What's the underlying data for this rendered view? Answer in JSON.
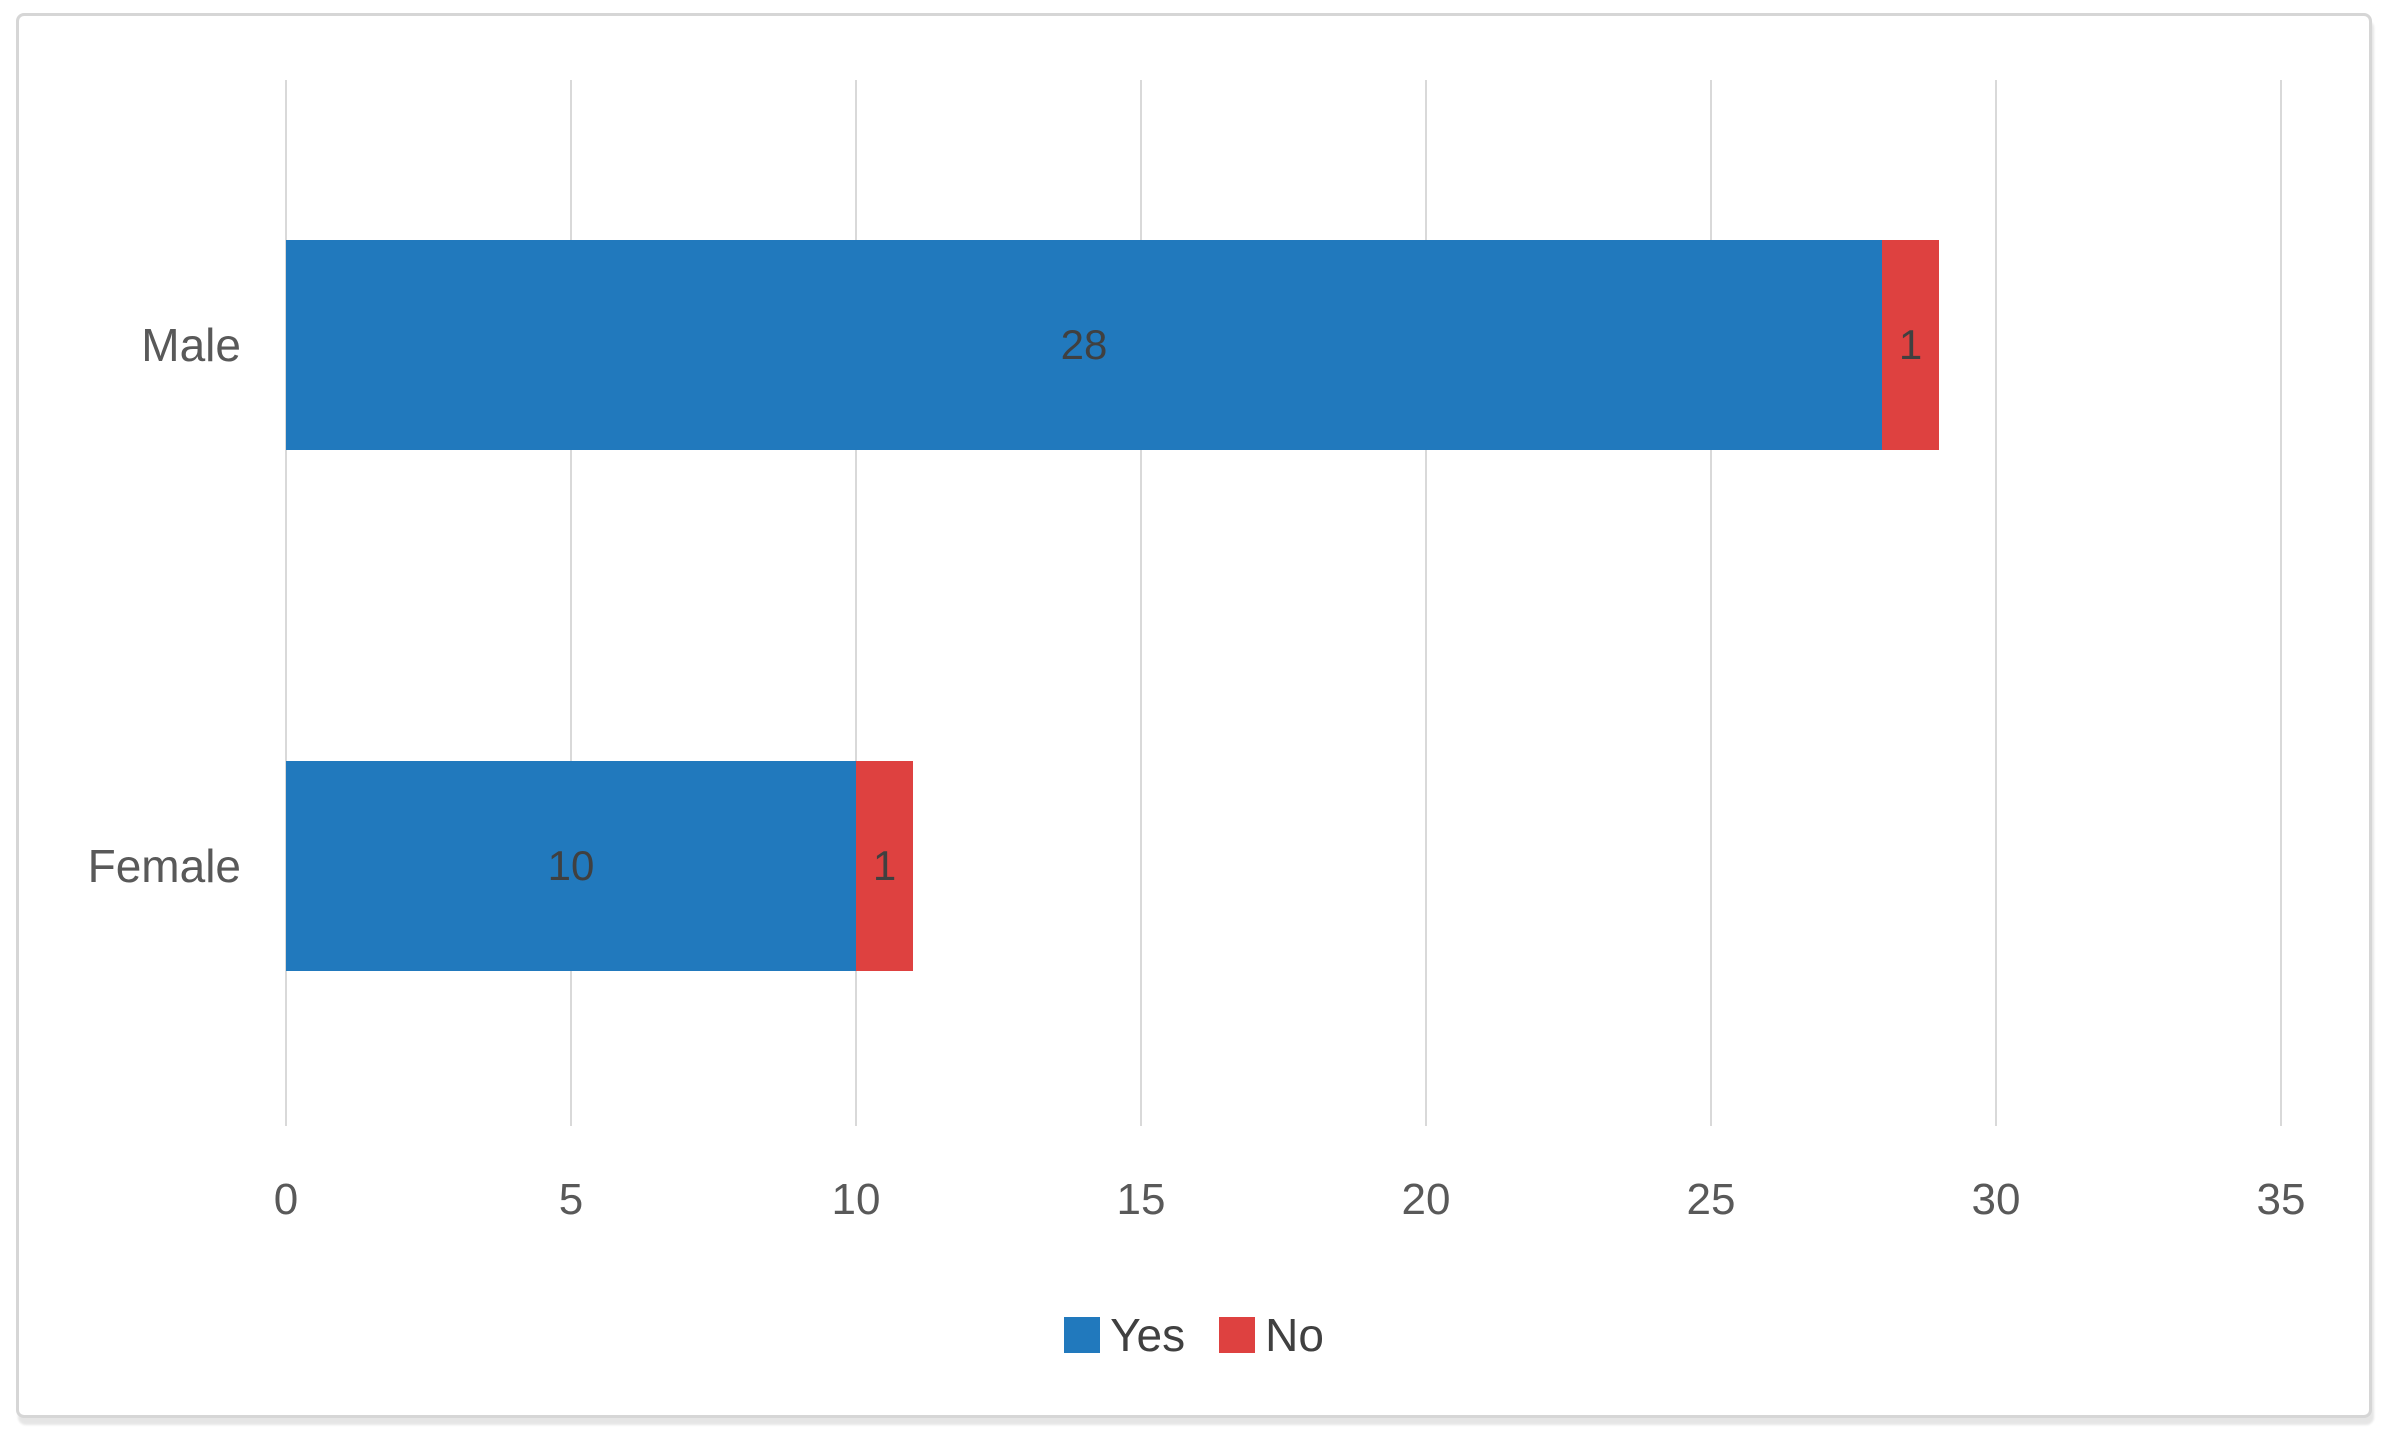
{
  "chart_data": {
    "type": "bar",
    "orientation": "horizontal",
    "stacked": true,
    "title": "",
    "xlabel": "",
    "ylabel": "",
    "categories": [
      "Male",
      "Female"
    ],
    "series": [
      {
        "name": "Yes",
        "color": "#2179BD",
        "values": [
          28,
          10
        ]
      },
      {
        "name": "No",
        "color": "#DE4140",
        "values": [
          1,
          1
        ]
      }
    ],
    "data_labels": true,
    "xlim": [
      0,
      35
    ],
    "xticks": [
      0,
      5,
      10,
      15,
      20,
      25,
      30,
      35
    ],
    "grid": "vertical-only",
    "gridline_color": "#D9D9D9",
    "axis_text_color": "#595959",
    "data_label_color": "#404040",
    "legend_position": "bottom-center",
    "frame_border_color": "#D6D6D6"
  }
}
